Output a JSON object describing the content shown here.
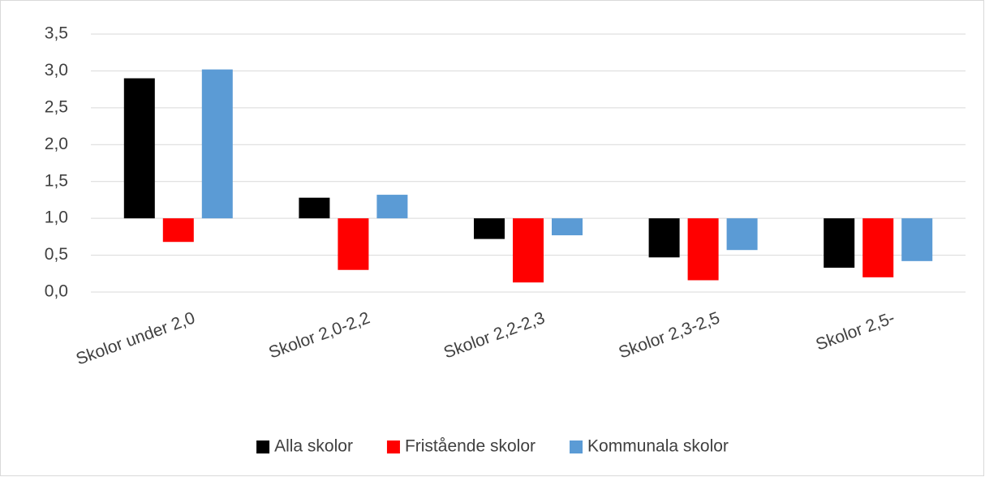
{
  "chart_data": {
    "type": "bar",
    "categories": [
      "Skolor under 2,0",
      "Skolor 2,0-2,2",
      "Skolor 2,2-2,3",
      "Skolor 2,3-2,5",
      "Skolor 2,5-"
    ],
    "series": [
      {
        "name": "Alla skolor",
        "color": "#000000",
        "values": [
          2.9,
          1.28,
          0.72,
          0.47,
          0.33
        ]
      },
      {
        "name": "Fristående skolor",
        "color": "#ff0000",
        "values": [
          0.68,
          0.3,
          0.13,
          0.16,
          0.2
        ]
      },
      {
        "name": "Kommunala skolor",
        "color": "#5b9bd5",
        "values": [
          3.02,
          1.32,
          0.77,
          0.57,
          0.42
        ]
      }
    ],
    "baseline": 1,
    "ylim": [
      0,
      3.5
    ],
    "yticks": [
      {
        "value": 0,
        "label": "0,0"
      },
      {
        "value": 0.5,
        "label": "0,5"
      },
      {
        "value": 1,
        "label": "1,0"
      },
      {
        "value": 1.5,
        "label": "1,5"
      },
      {
        "value": 2,
        "label": "2,0"
      },
      {
        "value": 2.5,
        "label": "2,5"
      },
      {
        "value": 3,
        "label": "3,0"
      },
      {
        "value": 3.5,
        "label": "3,5"
      }
    ],
    "grid": true,
    "legend": "bottom"
  }
}
